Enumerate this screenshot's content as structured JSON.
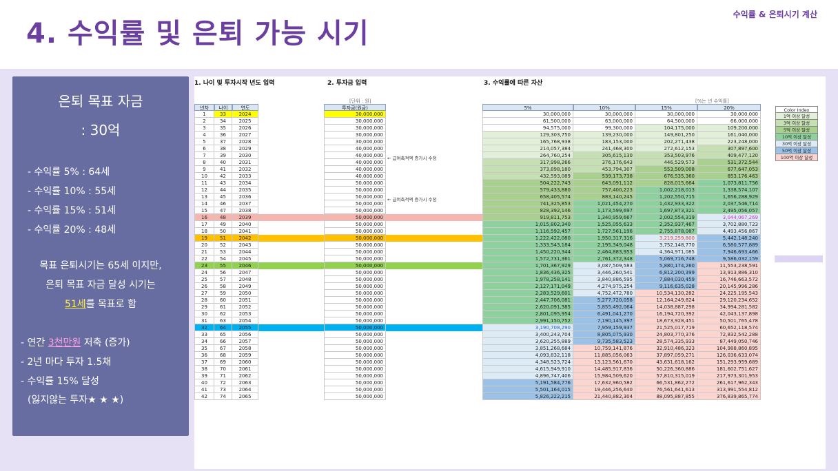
{
  "header": {
    "title": "4. 수익률 및 은퇴 가능 시기",
    "corner": "수익률 & 은퇴시기 계산"
  },
  "panel": {
    "heading1": "은퇴 목표 자금",
    "heading2": ": 30억",
    "rates": [
      "- 수익률  5% : 64세",
      "- 수익률 10% : 55세",
      "- 수익률 15% : 51세",
      "- 수익률 20% : 48세"
    ],
    "goal_line1": "목표 은퇴시기는 65세 이지만,",
    "goal_line2": "은퇴 목표 자금 달성 시기는",
    "goal_hl": "51세",
    "goal_rest": "를 목표로 함",
    "plan_prefix": "- 연간 ",
    "plan_hl": "3천만원",
    "plan_rest": " 저축 (증가)",
    "plan2": "- 2년 마다 투자 1.5채",
    "plan3": "- 수익률 15% 달성",
    "plan4": "(잃지않는 투자★ ★ ★)"
  },
  "colors": {
    "title": "#6b3fa0",
    "panel_bg": "#676da0",
    "page_bg": "#e6e1f4",
    "strip_pink": "#f4b6ae",
    "strip_orange": "#ffc000",
    "strip_green": "#92d050",
    "strip_blue": "#00b0f0",
    "strip_lavender": "#ddd5f3",
    "highlight_yellow": "#ffff00",
    "tier_colors": [
      "#ffffff",
      "#e2f0d9",
      "#c6e0b4",
      "#a9d08e",
      "#8fd19e",
      "#ddebf7",
      "#9bc2e6",
      "#fcd5d0"
    ]
  },
  "sheet": {
    "sec1": "1. 나이 및 투자시작 년도 입력",
    "sec2": "2. 투자금 입력",
    "sec3": "3. 수익률에 따른 자산",
    "unit_note": "[단위 : 원]",
    "rate_note": "[%는 년 수익률]",
    "col_headers": {
      "year_idx": "년차",
      "age": "나이",
      "year": "연도",
      "invest": "투자금(원금)"
    },
    "rate_headers": [
      "5%",
      "10%",
      "15%",
      "20%"
    ],
    "notes": [
      "← 급여축적액 증가시 수정",
      "← 급여축적액 증가시 수정"
    ],
    "legend_title": "Color Index",
    "legend": [
      "1억 이상 달성",
      "3억 이상 달성",
      "5억 이상 달성",
      "10억 이상 달성",
      "30억 이상 달성",
      "50억 이상 달성",
      "100억 이상 달성"
    ],
    "rows": [
      [
        "1",
        "33",
        "2024",
        "30,000,000",
        "30,000,000",
        "30,000,000",
        "30,000,000",
        "30,000,000"
      ],
      [
        "2",
        "34",
        "2025",
        "30,000,000",
        "61,500,000",
        "63,000,000",
        "64,500,000",
        "66,000,000"
      ],
      [
        "3",
        "35",
        "2026",
        "30,000,000",
        "94,575,000",
        "99,300,000",
        "104,175,000",
        "109,200,000"
      ],
      [
        "4",
        "36",
        "2027",
        "30,000,000",
        "129,303,750",
        "139,230,000",
        "149,801,250",
        "161,040,000"
      ],
      [
        "5",
        "37",
        "2028",
        "30,000,000",
        "165,768,938",
        "183,153,000",
        "202,271,438",
        "223,248,000"
      ],
      [
        "6",
        "38",
        "2029",
        "40,000,000",
        "214,057,384",
        "241,468,300",
        "272,612,153",
        "307,897,600"
      ],
      [
        "7",
        "39",
        "2030",
        "40,000,000",
        "264,760,254",
        "305,615,130",
        "353,503,976",
        "409,477,120"
      ],
      [
        "8",
        "40",
        "2031",
        "40,000,000",
        "317,998,266",
        "376,176,643",
        "446,529,573",
        "531,372,544"
      ],
      [
        "9",
        "41",
        "2032",
        "40,000,000",
        "373,898,180",
        "453,794,307",
        "553,509,008",
        "677,647,053"
      ],
      [
        "10",
        "42",
        "2033",
        "40,000,000",
        "432,593,089",
        "539,173,738",
        "676,535,360",
        "853,176,463"
      ],
      [
        "11",
        "43",
        "2034",
        "50,000,000",
        "504,222,743",
        "643,091,112",
        "828,015,664",
        "1,073,811,756"
      ],
      [
        "12",
        "44",
        "2035",
        "50,000,000",
        "579,433,880",
        "757,400,223",
        "1,002,218,013",
        "1,338,574,107"
      ],
      [
        "13",
        "45",
        "2036",
        "50,000,000",
        "658,405,574",
        "883,140,245",
        "1,202,550,715",
        "1,656,288,929"
      ],
      [
        "14",
        "46",
        "2037",
        "50,000,000",
        "741,325,853",
        "1,021,454,270",
        "1,432,933,322",
        "2,037,546,714"
      ],
      [
        "15",
        "47",
        "2038",
        "50,000,000",
        "828,392,146",
        "1,173,599,697",
        "1,697,873,321",
        "2,495,056,057"
      ],
      [
        "16",
        "48",
        "2039",
        "50,000,000",
        "919,811,753",
        "1,340,959,667",
        "2,002,554,319",
        "3,044,067,269"
      ],
      [
        "17",
        "49",
        "2040",
        "50,000,000",
        "1,015,802,340",
        "1,525,055,633",
        "2,352,937,467",
        "3,702,880,723"
      ],
      [
        "18",
        "50",
        "2041",
        "50,000,000",
        "1,116,592,457",
        "1,727,561,196",
        "2,755,878,087",
        "4,493,456,867"
      ],
      [
        "19",
        "51",
        "2042",
        "50,000,000",
        "1,222,422,080",
        "1,950,317,316",
        "3,219,259,800",
        "5,442,148,240"
      ],
      [
        "20",
        "52",
        "2043",
        "50,000,000",
        "1,333,543,184",
        "2,195,349,048",
        "3,752,148,770",
        "6,580,577,889"
      ],
      [
        "21",
        "53",
        "2044",
        "50,000,000",
        "1,450,220,344",
        "2,464,883,953",
        "4,364,971,085",
        "7,946,693,466"
      ],
      [
        "22",
        "54",
        "2045",
        "50,000,000",
        "1,572,731,361",
        "2,761,372,348",
        "5,069,716,748",
        "9,586,032,159"
      ],
      [
        "23",
        "55",
        "2046",
        "50,000,000",
        "1,701,367,929",
        "3,087,509,583",
        "5,880,174,260",
        "11,553,238,591"
      ],
      [
        "24",
        "56",
        "2047",
        "50,000,000",
        "1,836,436,325",
        "3,446,260,541",
        "6,812,200,399",
        "13,913,886,310"
      ],
      [
        "25",
        "57",
        "2048",
        "50,000,000",
        "1,978,258,141",
        "3,840,886,595",
        "7,884,030,459",
        "16,746,663,572"
      ],
      [
        "26",
        "58",
        "2049",
        "50,000,000",
        "2,127,171,049",
        "4,274,975,254",
        "9,116,635,028",
        "20,145,996,286"
      ],
      [
        "27",
        "59",
        "2050",
        "50,000,000",
        "2,283,529,601",
        "4,752,472,780",
        "10,534,130,282",
        "24,225,195,543"
      ],
      [
        "28",
        "60",
        "2051",
        "50,000,000",
        "2,447,706,081",
        "5,277,720,058",
        "12,164,249,824",
        "29,120,234,652"
      ],
      [
        "29",
        "61",
        "2052",
        "50,000,000",
        "2,620,091,385",
        "5,855,492,064",
        "14,038,887,298",
        "34,994,281,582"
      ],
      [
        "30",
        "62",
        "2053",
        "50,000,000",
        "2,801,095,954",
        "6,491,041,270",
        "16,194,720,392",
        "42,043,137,898"
      ],
      [
        "31",
        "63",
        "2054",
        "50,000,000",
        "2,991,150,752",
        "7,190,145,397",
        "18,673,928,451",
        "50,501,765,478"
      ],
      [
        "32",
        "64",
        "2055",
        "50,000,000",
        "3,190,708,290",
        "7,959,159,937",
        "21,525,017,719",
        "60,652,118,574"
      ],
      [
        "33",
        "65",
        "2056",
        "50,000,000",
        "3,400,243,704",
        "8,805,075,930",
        "24,803,770,376",
        "72,832,542,288"
      ],
      [
        "34",
        "66",
        "2057",
        "50,000,000",
        "3,620,255,889",
        "9,735,583,523",
        "28,574,335,933",
        "87,449,050,746"
      ],
      [
        "35",
        "67",
        "2058",
        "50,000,000",
        "3,851,268,684",
        "10,759,141,876",
        "32,910,486,323",
        "104,988,860,895"
      ],
      [
        "36",
        "68",
        "2059",
        "50,000,000",
        "4,093,832,118",
        "11,885,056,063",
        "37,897,059,271",
        "126,036,633,074"
      ],
      [
        "37",
        "69",
        "2060",
        "50,000,000",
        "4,348,523,724",
        "13,123,561,670",
        "43,631,618,162",
        "151,293,959,689"
      ],
      [
        "38",
        "70",
        "2061",
        "50,000,000",
        "4,615,949,910",
        "14,485,917,836",
        "50,226,360,886",
        "181,602,751,627"
      ],
      [
        "39",
        "71",
        "2062",
        "50,000,000",
        "4,896,747,406",
        "15,984,509,620",
        "57,810,315,019",
        "217,973,301,953"
      ],
      [
        "40",
        "72",
        "2063",
        "50,000,000",
        "5,191,584,776",
        "17,632,960,582",
        "66,531,862,272",
        "261,617,962,343"
      ],
      [
        "41",
        "73",
        "2064",
        "50,000,000",
        "5,501,164,015",
        "19,446,256,640",
        "76,561,641,613",
        "313,991,554,812"
      ],
      [
        "42",
        "74",
        "2065",
        "50,000,000",
        "5,826,222,215",
        "21,440,882,304",
        "88,095,887,855",
        "376,839,865,774"
      ]
    ]
  }
}
